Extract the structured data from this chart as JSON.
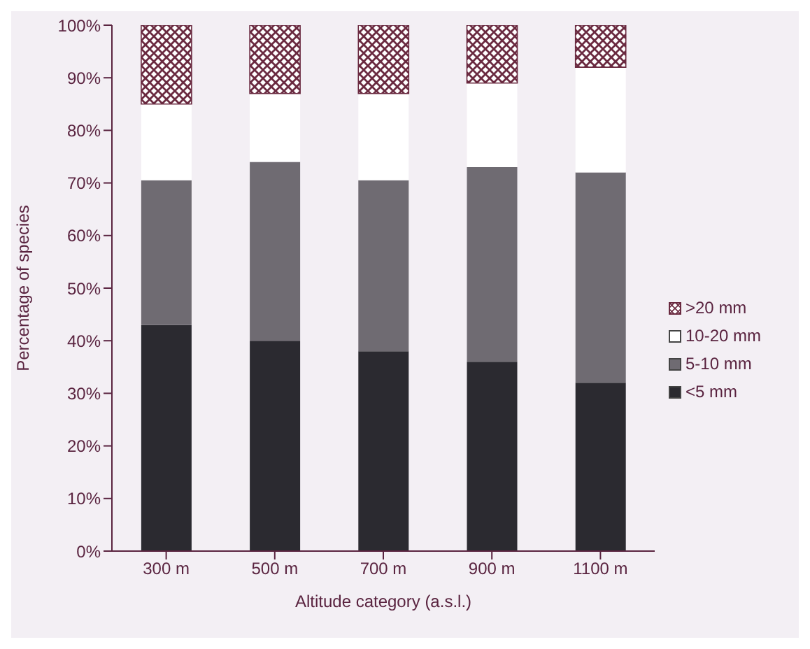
{
  "chart_data": {
    "type": "bar",
    "stacked": true,
    "xlabel": "Altitude category (a.s.l.)",
    "ylabel": "Percentage of species",
    "categories": [
      "300 m",
      "500 m",
      "700 m",
      "900 m",
      "1100 m"
    ],
    "series": [
      {
        "name": "<5 mm",
        "color": "#2b2a30",
        "values": [
          43,
          40,
          38,
          36,
          32
        ]
      },
      {
        "name": "5-10 mm",
        "color": "#6f6b72",
        "values": [
          27.5,
          34,
          32.5,
          37,
          40
        ]
      },
      {
        "name": "10-20 mm",
        "color": "#ffffff",
        "values": [
          14.5,
          13,
          16.5,
          16,
          20
        ]
      },
      {
        "name": ">20 mm",
        "color": "#6a2a40",
        "values": [
          15,
          13,
          13,
          11,
          8
        ]
      }
    ],
    "ylim": [
      0,
      100
    ],
    "yticks": [
      {
        "value": 0,
        "label": "0%"
      },
      {
        "value": 10,
        "label": "10%"
      },
      {
        "value": 20,
        "label": "20%"
      },
      {
        "value": 30,
        "label": "30%"
      },
      {
        "value": 40,
        "label": "40%"
      },
      {
        "value": 50,
        "label": "50%"
      },
      {
        "value": 60,
        "label": "60%"
      },
      {
        "value": 70,
        "label": "70%"
      },
      {
        "value": 80,
        "label": "80%"
      },
      {
        "value": 90,
        "label": "90%"
      },
      {
        "value": 100,
        "label": "100%"
      }
    ],
    "grid": false,
    "legend": "right"
  }
}
